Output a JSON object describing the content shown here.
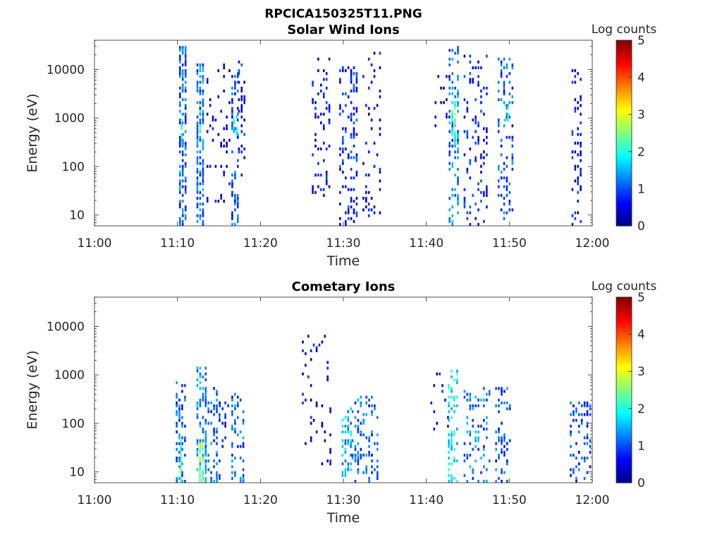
{
  "figure_title": "RPCICA150325T11.PNG",
  "chart_data": [
    {
      "type": "heatmap",
      "title": "Solar Wind Ions",
      "xlabel": "Time",
      "ylabel": "Energy (eV)",
      "x_ticks": [
        "11:00",
        "11:10",
        "11:20",
        "11:30",
        "11:40",
        "11:50",
        "12:00"
      ],
      "xlim": [
        "11:00",
        "12:00"
      ],
      "y_scale": "log",
      "y_ticks": [
        "10",
        "100",
        "1000",
        "10000"
      ],
      "ylim": [
        6,
        40000
      ],
      "colorbar": {
        "label": "Log counts",
        "range": [
          0,
          5
        ],
        "ticks": [
          "0",
          "1",
          "2",
          "3",
          "4",
          "5"
        ],
        "colormap": "jet"
      },
      "background": "#ffffff",
      "grid": false,
      "bursts": [
        {
          "t_start": 10.2,
          "t_end": 10.9,
          "e_min": 6,
          "e_max": 28000,
          "density": 0.55,
          "level": 1.1
        },
        {
          "t_start": 10.4,
          "t_end": 10.6,
          "e_min": 250,
          "e_max": 1200,
          "density": 0.7,
          "level": 2.0
        },
        {
          "t_start": 12.3,
          "t_end": 13.0,
          "e_min": 6,
          "e_max": 13000,
          "density": 0.55,
          "level": 1.2
        },
        {
          "t_start": 12.6,
          "t_end": 12.9,
          "e_min": 500,
          "e_max": 2000,
          "density": 0.7,
          "level": 2.6
        },
        {
          "t_start": 13.5,
          "t_end": 16.5,
          "e_min": 20,
          "e_max": 15000,
          "density": 0.12,
          "level": 0.4
        },
        {
          "t_start": 16.5,
          "t_end": 17.3,
          "e_min": 6,
          "e_max": 10000,
          "density": 0.35,
          "level": 1.0
        },
        {
          "t_start": 16.7,
          "t_end": 17.1,
          "e_min": 350,
          "e_max": 1000,
          "density": 0.6,
          "level": 1.8
        },
        {
          "t_start": 17.3,
          "t_end": 18.2,
          "e_min": 60,
          "e_max": 15000,
          "density": 0.18,
          "level": 0.6
        },
        {
          "t_start": 26.2,
          "t_end": 28.5,
          "e_min": 25,
          "e_max": 16000,
          "density": 0.18,
          "level": 0.6
        },
        {
          "t_start": 29.5,
          "t_end": 31.5,
          "e_min": 6,
          "e_max": 12000,
          "density": 0.25,
          "level": 0.8
        },
        {
          "t_start": 32.3,
          "t_end": 34.5,
          "e_min": 6,
          "e_max": 22000,
          "density": 0.16,
          "level": 0.5
        },
        {
          "t_start": 41.0,
          "t_end": 42.7,
          "e_min": 600,
          "e_max": 9000,
          "density": 0.1,
          "level": 0.4
        },
        {
          "t_start": 42.7,
          "t_end": 43.8,
          "e_min": 6,
          "e_max": 30000,
          "density": 0.35,
          "level": 1.2
        },
        {
          "t_start": 43.0,
          "t_end": 43.4,
          "e_min": 300,
          "e_max": 2000,
          "density": 0.6,
          "level": 2.2
        },
        {
          "t_start": 44.5,
          "t_end": 47.2,
          "e_min": 6,
          "e_max": 18000,
          "density": 0.2,
          "level": 0.7
        },
        {
          "t_start": 48.6,
          "t_end": 50.3,
          "e_min": 8,
          "e_max": 16000,
          "density": 0.25,
          "level": 1.0
        },
        {
          "t_start": 49.4,
          "t_end": 49.9,
          "e_min": 800,
          "e_max": 2000,
          "density": 0.5,
          "level": 2.0
        },
        {
          "t_start": 57.5,
          "t_end": 58.7,
          "e_min": 6,
          "e_max": 12000,
          "density": 0.2,
          "level": 0.6
        }
      ]
    },
    {
      "type": "heatmap",
      "title": "Cometary Ions",
      "xlabel": "Time",
      "ylabel": "Energy (eV)",
      "x_ticks": [
        "11:00",
        "11:10",
        "11:20",
        "11:30",
        "11:40",
        "11:50",
        "12:00"
      ],
      "xlim": [
        "11:00",
        "12:00"
      ],
      "y_scale": "log",
      "y_ticks": [
        "10",
        "100",
        "1000",
        "10000"
      ],
      "ylim": [
        6,
        40000
      ],
      "colorbar": {
        "label": "Log counts",
        "range": [
          0,
          5
        ],
        "ticks": [
          "0",
          "1",
          "2",
          "3",
          "4",
          "5"
        ],
        "colormap": "jet"
      },
      "background": "#ffffff",
      "grid": false,
      "bursts": [
        {
          "t_start": 9.8,
          "t_end": 10.9,
          "e_min": 6,
          "e_max": 700,
          "density": 0.35,
          "level": 1.1
        },
        {
          "t_start": 10.3,
          "t_end": 10.6,
          "e_min": 6,
          "e_max": 60,
          "density": 0.8,
          "level": 2.2
        },
        {
          "t_start": 12.3,
          "t_end": 13.3,
          "e_min": 6,
          "e_max": 1400,
          "density": 0.45,
          "level": 1.3
        },
        {
          "t_start": 12.6,
          "t_end": 13.0,
          "e_min": 6,
          "e_max": 40,
          "density": 0.8,
          "level": 2.5
        },
        {
          "t_start": 13.3,
          "t_end": 15.0,
          "e_min": 6,
          "e_max": 500,
          "density": 0.25,
          "level": 1.1
        },
        {
          "t_start": 15.0,
          "t_end": 16.0,
          "e_min": 20,
          "e_max": 300,
          "density": 0.15,
          "level": 0.6
        },
        {
          "t_start": 16.5,
          "t_end": 18.0,
          "e_min": 6,
          "e_max": 400,
          "density": 0.25,
          "level": 1.1
        },
        {
          "t_start": 25.0,
          "t_end": 28.5,
          "e_min": 15,
          "e_max": 6000,
          "density": 0.08,
          "level": 0.5
        },
        {
          "t_start": 29.8,
          "t_end": 31.0,
          "e_min": 8,
          "e_max": 200,
          "density": 0.4,
          "level": 1.5
        },
        {
          "t_start": 31.0,
          "t_end": 34.3,
          "e_min": 6,
          "e_max": 400,
          "density": 0.22,
          "level": 1.1
        },
        {
          "t_start": 40.5,
          "t_end": 42.5,
          "e_min": 60,
          "e_max": 1000,
          "density": 0.06,
          "level": 0.5
        },
        {
          "t_start": 42.6,
          "t_end": 43.8,
          "e_min": 6,
          "e_max": 1200,
          "density": 0.35,
          "level": 1.8
        },
        {
          "t_start": 44.5,
          "t_end": 47.8,
          "e_min": 6,
          "e_max": 500,
          "density": 0.22,
          "level": 1.2
        },
        {
          "t_start": 48.3,
          "t_end": 50.2,
          "e_min": 6,
          "e_max": 500,
          "density": 0.22,
          "level": 1.0
        },
        {
          "t_start": 57.3,
          "t_end": 59.9,
          "e_min": 6,
          "e_max": 250,
          "density": 0.3,
          "level": 0.9
        }
      ]
    }
  ]
}
